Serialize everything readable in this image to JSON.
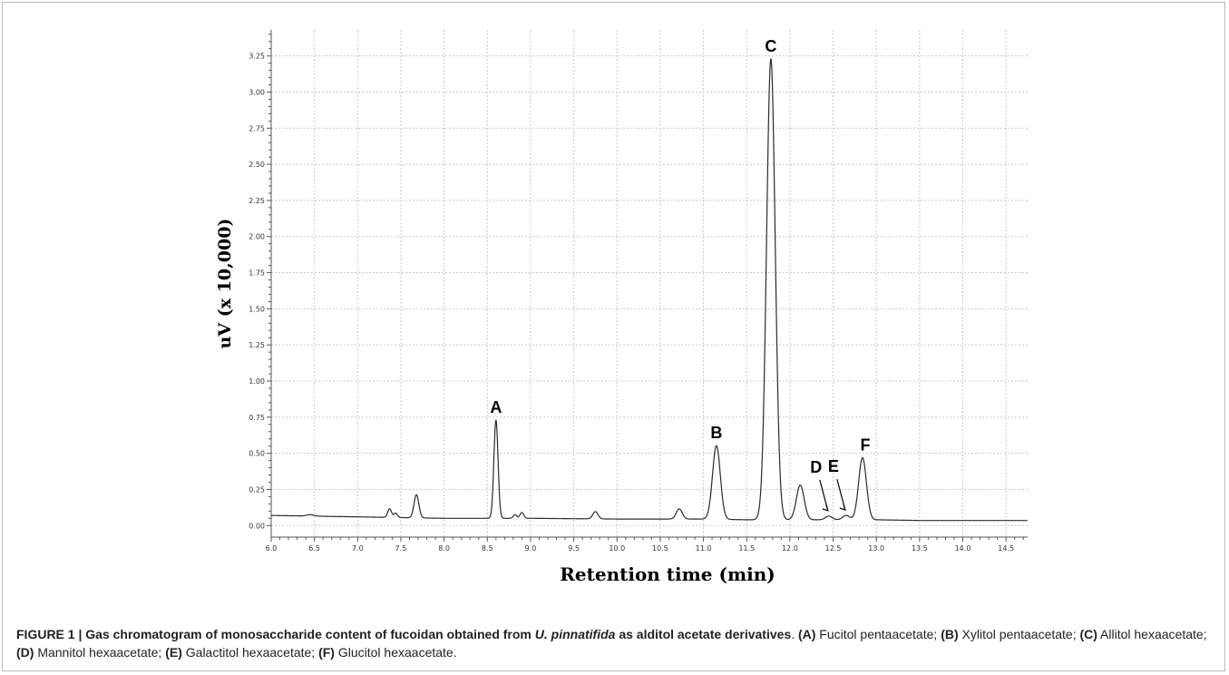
{
  "figure": {
    "caption_head_1": "FIGURE 1 | Gas chromatogram of monosaccharide content of fucoidan obtained from ",
    "caption_head_italic": "U. pinnatifida",
    "caption_head_2": " as alditol acetate derivatives",
    "caption_sep": ". ",
    "caption_items": [
      {
        "tag": "(A)",
        "text": " Fucitol pentaacetate; "
      },
      {
        "tag": "(B)",
        "text": " Xylitol pentaacetate; "
      },
      {
        "tag": "(C)",
        "text": " Allitol hexaacetate; "
      },
      {
        "tag": "(D)",
        "text": " Mannitol hexaacetate; "
      },
      {
        "tag": "(E)",
        "text": " Galactitol hexaacetate; "
      },
      {
        "tag": "(F)",
        "text": " Glucitol hexaacetate."
      }
    ]
  },
  "chart_data": {
    "type": "line",
    "xlabel": "Retention time (min)",
    "ylabel": "uV (x 10,000)",
    "xlim": [
      6.0,
      14.75
    ],
    "ylim": [
      -0.08,
      3.43
    ],
    "grid": true,
    "x_ticks": [
      "6.0",
      "6.5",
      "7.0",
      "7.5",
      "8.0",
      "8.5",
      "9.0",
      "9.5",
      "10.0",
      "10.5",
      "11.0",
      "11.5",
      "12.0",
      "12.5",
      "13.0",
      "13.5",
      "14.0",
      "14.5"
    ],
    "y_ticks": [
      "0.00",
      "0.25",
      "0.50",
      "0.75",
      "1.00",
      "1.25",
      "1.50",
      "1.75",
      "2.00",
      "2.25",
      "2.50",
      "2.75",
      "3.00",
      "3.25"
    ],
    "baseline": [
      [
        6.0,
        0.07
      ],
      [
        6.5,
        0.065
      ],
      [
        7.0,
        0.06
      ],
      [
        8.0,
        0.05
      ],
      [
        9.0,
        0.05
      ],
      [
        10.0,
        0.045
      ],
      [
        11.0,
        0.045
      ],
      [
        11.5,
        0.04
      ],
      [
        12.0,
        0.04
      ],
      [
        12.5,
        0.04
      ],
      [
        13.0,
        0.04
      ],
      [
        13.5,
        0.035
      ],
      [
        14.75,
        0.035
      ]
    ],
    "peaks": [
      {
        "x": 6.45,
        "height": 0.01,
        "width": 0.04
      },
      {
        "x": 7.37,
        "height": 0.06,
        "width": 0.022
      },
      {
        "x": 7.44,
        "height": 0.03,
        "width": 0.02
      },
      {
        "x": 7.68,
        "height": 0.16,
        "width": 0.028
      },
      {
        "x": 8.6,
        "height": 0.68,
        "width": 0.024
      },
      {
        "x": 8.82,
        "height": 0.025,
        "width": 0.02
      },
      {
        "x": 8.9,
        "height": 0.04,
        "width": 0.022
      },
      {
        "x": 9.75,
        "height": 0.05,
        "width": 0.03
      },
      {
        "x": 10.72,
        "height": 0.07,
        "width": 0.035
      },
      {
        "x": 11.15,
        "height": 0.51,
        "width": 0.045
      },
      {
        "x": 11.78,
        "height": 3.19,
        "width": 0.05
      },
      {
        "x": 12.12,
        "height": 0.24,
        "width": 0.045
      },
      {
        "x": 12.45,
        "height": 0.025,
        "width": 0.04
      },
      {
        "x": 12.65,
        "height": 0.03,
        "width": 0.04
      },
      {
        "x": 12.84,
        "height": 0.43,
        "width": 0.045
      }
    ],
    "annotations": [
      {
        "label": "A",
        "x": 8.6
      },
      {
        "label": "B",
        "x": 11.15
      },
      {
        "label": "C",
        "x": 11.78
      },
      {
        "label": "D",
        "x": 12.45
      },
      {
        "label": "E",
        "x": 12.65
      },
      {
        "label": "F",
        "x": 12.84
      }
    ]
  }
}
